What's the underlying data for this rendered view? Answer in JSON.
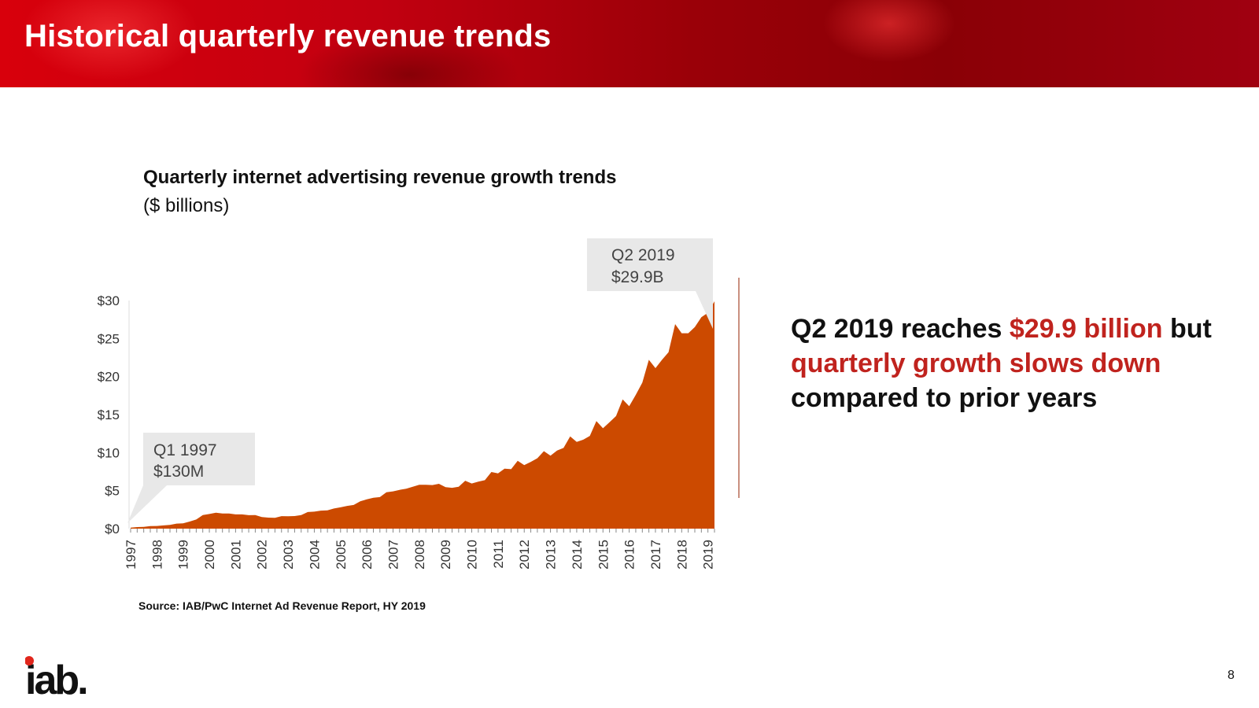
{
  "header": {
    "title": "Historical quarterly revenue trends"
  },
  "chart_title": "Quarterly internet advertising revenue growth trends",
  "chart_subtitle": "($ billions)",
  "source": "Source: IAB/PwC Internet Ad Revenue Report, HY 2019",
  "headline": {
    "p1": "Q2 2019 reaches ",
    "p2": "$29.9 billion",
    "p3": " but ",
    "p4": "quarterly growth slows down",
    "p5": " compared to prior years"
  },
  "logo": {
    "text": "iab."
  },
  "page_number": "8",
  "colors": {
    "area": "#cc4a00",
    "accent": "#c0231e",
    "callout_bg": "#e8e8e8"
  },
  "chart_data": {
    "type": "area",
    "title": "Quarterly internet advertising revenue growth trends",
    "ylabel": "$ billions",
    "ylim": [
      0,
      30
    ],
    "y_ticks": [
      "$0",
      "$5",
      "$10",
      "$15",
      "$20",
      "$25",
      "$30"
    ],
    "y_tick_values": [
      0,
      5,
      10,
      15,
      20,
      25,
      30
    ],
    "x_ticks": [
      "1997",
      "1998",
      "1999",
      "2000",
      "2001",
      "2002",
      "2003",
      "2004",
      "2005",
      "2006",
      "2007",
      "2008",
      "2009",
      "2010",
      "2011",
      "2012",
      "2013",
      "2014",
      "2015",
      "2016",
      "2017",
      "2018",
      "2019"
    ],
    "series": [
      {
        "name": "Quarterly revenue",
        "x": [
          "Q1 1997",
          "Q2 1997",
          "Q3 1997",
          "Q4 1997",
          "Q1 1998",
          "Q2 1998",
          "Q3 1998",
          "Q4 1998",
          "Q1 1999",
          "Q2 1999",
          "Q3 1999",
          "Q4 1999",
          "Q1 2000",
          "Q2 2000",
          "Q3 2000",
          "Q4 2000",
          "Q1 2001",
          "Q2 2001",
          "Q3 2001",
          "Q4 2001",
          "Q1 2002",
          "Q2 2002",
          "Q3 2002",
          "Q4 2002",
          "Q1 2003",
          "Q2 2003",
          "Q3 2003",
          "Q4 2003",
          "Q1 2004",
          "Q2 2004",
          "Q3 2004",
          "Q4 2004",
          "Q1 2005",
          "Q2 2005",
          "Q3 2005",
          "Q4 2005",
          "Q1 2006",
          "Q2 2006",
          "Q3 2006",
          "Q4 2006",
          "Q1 2007",
          "Q2 2007",
          "Q3 2007",
          "Q4 2007",
          "Q1 2008",
          "Q2 2008",
          "Q3 2008",
          "Q4 2008",
          "Q1 2009",
          "Q2 2009",
          "Q3 2009",
          "Q4 2009",
          "Q1 2010",
          "Q2 2010",
          "Q3 2010",
          "Q4 2010",
          "Q1 2011",
          "Q2 2011",
          "Q3 2011",
          "Q4 2011",
          "Q1 2012",
          "Q2 2012",
          "Q3 2012",
          "Q4 2012",
          "Q1 2013",
          "Q2 2013",
          "Q3 2013",
          "Q4 2013",
          "Q1 2014",
          "Q2 2014",
          "Q3 2014",
          "Q4 2014",
          "Q1 2015",
          "Q2 2015",
          "Q3 2015",
          "Q4 2015",
          "Q1 2016",
          "Q2 2016",
          "Q3 2016",
          "Q4 2016",
          "Q1 2017",
          "Q2 2017",
          "Q3 2017",
          "Q4 2017",
          "Q1 2018",
          "Q2 2018",
          "Q3 2018",
          "Q4 2018",
          "Q1 2019",
          "Q2 2019"
        ],
        "values": [
          0.13,
          0.21,
          0.23,
          0.34,
          0.35,
          0.42,
          0.49,
          0.66,
          0.69,
          0.93,
          1.2,
          1.78,
          1.92,
          2.1,
          1.99,
          1.99,
          1.87,
          1.87,
          1.77,
          1.79,
          1.52,
          1.45,
          1.43,
          1.64,
          1.63,
          1.66,
          1.79,
          2.18,
          2.23,
          2.37,
          2.41,
          2.65,
          2.8,
          2.99,
          3.11,
          3.6,
          3.85,
          4.06,
          4.15,
          4.79,
          4.9,
          5.1,
          5.24,
          5.5,
          5.77,
          5.76,
          5.73,
          5.9,
          5.46,
          5.37,
          5.5,
          6.3,
          5.94,
          6.19,
          6.37,
          7.45,
          7.26,
          7.88,
          7.82,
          8.93,
          8.35,
          8.78,
          9.26,
          10.19,
          9.6,
          10.26,
          10.61,
          12.13,
          11.4,
          11.7,
          12.2,
          14.15,
          13.2,
          14.0,
          14.8,
          17.0,
          16.1,
          17.6,
          19.2,
          22.2,
          21.1,
          22.2,
          23.2,
          26.9,
          25.7,
          25.7,
          26.5,
          27.8,
          28.4,
          29.9
        ]
      }
    ],
    "annotations": [
      {
        "line1": "Q1 1997",
        "line2": "$130M"
      },
      {
        "line1": "Q2 2019",
        "line2": "$29.9B"
      }
    ]
  }
}
